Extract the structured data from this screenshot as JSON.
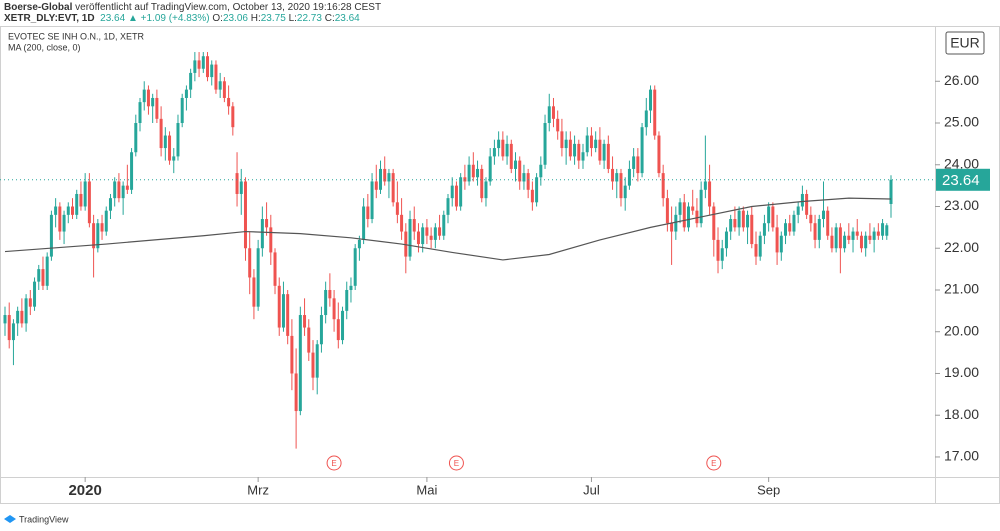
{
  "header": {
    "publisher": "Boerse-Global",
    "published": "veröffentlicht auf TradingView.com, October 13, 2020 19:16:28 CEST",
    "symbol": "XETR_DLY:EVT, 1D",
    "last": "23.64",
    "change": "▲ +1.09 (+4.83%)",
    "quote": [
      "O:",
      "23.06",
      "H:",
      "23.75",
      "L:",
      "22.73",
      "C:",
      "23.64"
    ]
  },
  "footer": "TradingView",
  "chart_data": {
    "type": "candlestick",
    "title": "EVOTEC SE INH O.N., 1D, XETR",
    "currency": "EUR",
    "up_color": "#26a69a",
    "down_color": "#ef5350",
    "grid": false,
    "ylim": [
      16.52,
      27.3
    ],
    "yticks": [
      {
        "value": 17,
        "label": "17.00"
      },
      {
        "value": 18,
        "label": "18.00"
      },
      {
        "value": 19,
        "label": "19.00"
      },
      {
        "value": 20,
        "label": "20.00"
      },
      {
        "value": 21,
        "label": "21.00"
      },
      {
        "value": 22,
        "label": "22.00"
      },
      {
        "value": 23,
        "label": "23.00"
      },
      {
        "value": 24,
        "label": "24.00"
      },
      {
        "value": 25,
        "label": "25.00"
      },
      {
        "value": 26,
        "label": "26.00"
      }
    ],
    "xticks": [
      {
        "value": 19,
        "label": "2020"
      },
      {
        "value": 60,
        "label": "Mrz"
      },
      {
        "value": 100,
        "label": "Mai"
      },
      {
        "value": 139,
        "label": "Jul"
      },
      {
        "value": 181,
        "label": "Sep"
      }
    ],
    "events": [
      {
        "x": 78,
        "label": "E"
      },
      {
        "x": 107,
        "label": "E"
      },
      {
        "x": 168,
        "label": "E"
      }
    ],
    "ma": {
      "name": "MA (200, close, 0)",
      "color": "#555555",
      "x": [
        0,
        24,
        47,
        57,
        70,
        82,
        94,
        106,
        118,
        129,
        141,
        153,
        165,
        177,
        189,
        200,
        210
      ],
      "values": [
        21.92,
        22.1,
        22.3,
        22.4,
        22.35,
        22.25,
        22.1,
        21.9,
        21.72,
        21.85,
        22.2,
        22.5,
        22.75,
        23.0,
        23.12,
        23.2,
        23.18
      ]
    },
    "candles": [
      [
        20.2,
        20.6,
        19.9,
        20.4
      ],
      [
        20.4,
        20.7,
        19.6,
        19.8
      ],
      [
        19.8,
        20.3,
        19.2,
        20.2
      ],
      [
        20.2,
        20.6,
        19.9,
        20.5
      ],
      [
        20.5,
        20.8,
        20.1,
        20.2
      ],
      [
        20.2,
        20.9,
        20.0,
        20.8
      ],
      [
        20.8,
        21.0,
        20.4,
        20.6
      ],
      [
        20.6,
        21.3,
        20.5,
        21.2
      ],
      [
        21.2,
        21.6,
        21.0,
        21.5
      ],
      [
        21.5,
        21.8,
        21.0,
        21.1
      ],
      [
        21.1,
        21.9,
        21.0,
        21.8
      ],
      [
        21.8,
        22.9,
        21.7,
        22.8
      ],
      [
        22.8,
        23.2,
        22.5,
        23.0
      ],
      [
        23.0,
        23.1,
        22.2,
        22.4
      ],
      [
        22.4,
        22.9,
        22.1,
        22.8
      ],
      [
        22.8,
        23.1,
        22.6,
        23.0
      ],
      [
        23.0,
        23.2,
        22.7,
        22.8
      ],
      [
        22.8,
        23.4,
        22.7,
        23.3
      ],
      [
        23.3,
        23.6,
        22.9,
        23.0
      ],
      [
        23.0,
        23.8,
        22.9,
        23.6
      ],
      [
        23.6,
        23.8,
        22.5,
        22.6
      ],
      [
        22.6,
        22.8,
        21.3,
        22.0
      ],
      [
        22.0,
        22.7,
        21.9,
        22.6
      ],
      [
        22.6,
        22.8,
        22.2,
        22.4
      ],
      [
        22.4,
        23.0,
        22.3,
        22.9
      ],
      [
        22.9,
        23.3,
        22.7,
        23.2
      ],
      [
        23.2,
        23.7,
        23.0,
        23.6
      ],
      [
        23.6,
        23.8,
        23.1,
        23.2
      ],
      [
        23.2,
        23.6,
        22.8,
        23.5
      ],
      [
        23.5,
        24.0,
        23.3,
        23.4
      ],
      [
        23.4,
        24.4,
        23.3,
        24.3
      ],
      [
        24.3,
        25.2,
        24.2,
        25.0
      ],
      [
        25.0,
        25.6,
        24.8,
        25.5
      ],
      [
        25.5,
        26.0,
        25.3,
        25.8
      ],
      [
        25.8,
        25.9,
        25.2,
        25.4
      ],
      [
        25.4,
        25.7,
        25.0,
        25.6
      ],
      [
        25.6,
        25.8,
        25.0,
        25.1
      ],
      [
        25.1,
        25.4,
        24.2,
        24.4
      ],
      [
        24.4,
        24.9,
        24.1,
        24.7
      ],
      [
        24.7,
        24.8,
        24.0,
        24.1
      ],
      [
        24.1,
        24.4,
        23.8,
        24.2
      ],
      [
        24.2,
        25.2,
        24.1,
        25.0
      ],
      [
        25.0,
        25.7,
        24.9,
        25.6
      ],
      [
        25.6,
        25.9,
        25.3,
        25.8
      ],
      [
        25.8,
        26.3,
        25.6,
        26.2
      ],
      [
        26.2,
        26.7,
        26.0,
        26.5
      ],
      [
        26.5,
        26.7,
        26.1,
        26.3
      ],
      [
        26.3,
        26.7,
        26.2,
        26.6
      ],
      [
        26.6,
        26.7,
        26.0,
        26.1
      ],
      [
        26.1,
        26.5,
        25.9,
        26.4
      ],
      [
        26.4,
        26.5,
        25.7,
        25.8
      ],
      [
        25.8,
        26.2,
        25.6,
        26.0
      ],
      [
        26.0,
        26.1,
        25.5,
        25.6
      ],
      [
        25.6,
        25.9,
        25.2,
        25.4
      ],
      [
        25.4,
        25.5,
        24.7,
        24.9
      ],
      [
        23.8,
        24.3,
        23.0,
        23.3
      ],
      [
        23.3,
        23.9,
        22.8,
        23.6
      ],
      [
        23.6,
        23.7,
        21.7,
        22.0
      ],
      [
        22.0,
        22.4,
        20.9,
        21.3
      ],
      [
        21.3,
        21.5,
        20.3,
        20.6
      ],
      [
        20.6,
        22.2,
        20.5,
        22.0
      ],
      [
        22.0,
        23.0,
        21.8,
        22.7
      ],
      [
        22.7,
        23.1,
        22.3,
        22.5
      ],
      [
        22.5,
        22.8,
        21.6,
        21.9
      ],
      [
        21.9,
        22.0,
        20.9,
        21.1
      ],
      [
        21.1,
        21.3,
        19.9,
        20.1
      ],
      [
        20.1,
        21.2,
        20.0,
        20.9
      ],
      [
        20.9,
        21.0,
        19.7,
        19.9
      ],
      [
        19.9,
        20.3,
        18.6,
        19.0
      ],
      [
        19.0,
        19.6,
        17.2,
        18.1
      ],
      [
        18.1,
        20.6,
        18.0,
        20.4
      ],
      [
        20.4,
        20.8,
        19.9,
        20.1
      ],
      [
        20.1,
        20.3,
        19.3,
        19.5
      ],
      [
        19.5,
        19.8,
        18.6,
        18.9
      ],
      [
        18.9,
        19.8,
        18.5,
        19.7
      ],
      [
        19.7,
        20.6,
        19.5,
        20.4
      ],
      [
        20.4,
        21.2,
        20.2,
        21.0
      ],
      [
        21.0,
        21.4,
        20.6,
        20.8
      ],
      [
        20.8,
        21.0,
        20.0,
        20.3
      ],
      [
        20.3,
        20.7,
        19.6,
        19.8
      ],
      [
        19.8,
        20.6,
        19.7,
        20.5
      ],
      [
        20.5,
        21.2,
        20.3,
        21.0
      ],
      [
        21.0,
        21.3,
        20.7,
        21.1
      ],
      [
        21.1,
        22.1,
        21.0,
        22.0
      ],
      [
        22.0,
        22.3,
        21.7,
        22.2
      ],
      [
        22.2,
        23.2,
        22.1,
        23.0
      ],
      [
        23.0,
        23.3,
        22.5,
        22.7
      ],
      [
        22.7,
        23.8,
        22.6,
        23.6
      ],
      [
        23.6,
        24.0,
        23.2,
        23.4
      ],
      [
        23.4,
        24.1,
        23.3,
        23.9
      ],
      [
        23.9,
        24.2,
        23.5,
        23.6
      ],
      [
        23.6,
        23.9,
        23.2,
        23.8
      ],
      [
        23.8,
        23.9,
        23.0,
        23.1
      ],
      [
        23.1,
        23.6,
        22.6,
        22.8
      ],
      [
        22.8,
        23.2,
        22.2,
        22.4
      ],
      [
        22.4,
        22.6,
        21.4,
        21.8
      ],
      [
        21.8,
        22.9,
        21.7,
        22.7
      ],
      [
        22.7,
        23.0,
        22.2,
        22.4
      ],
      [
        22.4,
        22.6,
        21.9,
        22.1
      ],
      [
        22.1,
        22.6,
        21.9,
        22.5
      ],
      [
        22.5,
        22.7,
        22.1,
        22.3
      ],
      [
        22.3,
        22.5,
        22.0,
        22.2
      ],
      [
        22.2,
        22.6,
        22.0,
        22.5
      ],
      [
        22.5,
        22.8,
        22.2,
        22.3
      ],
      [
        22.3,
        22.9,
        22.2,
        22.8
      ],
      [
        22.8,
        23.3,
        22.6,
        23.2
      ],
      [
        23.2,
        23.7,
        23.0,
        23.5
      ],
      [
        23.5,
        23.6,
        22.9,
        23.0
      ],
      [
        23.0,
        23.8,
        22.9,
        23.7
      ],
      [
        23.7,
        24.0,
        23.4,
        23.6
      ],
      [
        23.6,
        24.2,
        23.5,
        24.0
      ],
      [
        24.0,
        24.3,
        23.6,
        23.7
      ],
      [
        23.7,
        24.1,
        23.5,
        23.9
      ],
      [
        23.9,
        24.0,
        23.1,
        23.2
      ],
      [
        23.2,
        23.7,
        23.0,
        23.6
      ],
      [
        23.6,
        24.4,
        23.5,
        24.2
      ],
      [
        24.2,
        24.6,
        24.0,
        24.4
      ],
      [
        24.4,
        24.8,
        24.2,
        24.6
      ],
      [
        24.6,
        24.8,
        24.1,
        24.2
      ],
      [
        24.2,
        24.7,
        24.0,
        24.5
      ],
      [
        24.5,
        24.6,
        23.8,
        23.9
      ],
      [
        23.9,
        24.3,
        23.6,
        24.1
      ],
      [
        24.1,
        24.2,
        23.4,
        23.6
      ],
      [
        23.6,
        24.0,
        23.4,
        23.8
      ],
      [
        23.8,
        23.9,
        23.2,
        23.4
      ],
      [
        23.4,
        23.6,
        22.9,
        23.1
      ],
      [
        23.1,
        23.8,
        23.0,
        23.7
      ],
      [
        23.7,
        24.2,
        23.5,
        24.0
      ],
      [
        24.0,
        25.2,
        23.9,
        25.0
      ],
      [
        25.0,
        25.7,
        24.8,
        25.4
      ],
      [
        25.4,
        25.6,
        24.9,
        25.1
      ],
      [
        25.1,
        25.3,
        24.6,
        24.8
      ],
      [
        24.8,
        25.1,
        24.2,
        24.4
      ],
      [
        24.4,
        24.8,
        24.0,
        24.6
      ],
      [
        24.6,
        24.8,
        24.1,
        24.2
      ],
      [
        24.2,
        24.7,
        24.0,
        24.5
      ],
      [
        24.5,
        24.6,
        23.9,
        24.1
      ],
      [
        24.1,
        24.5,
        23.9,
        24.3
      ],
      [
        24.3,
        24.9,
        24.2,
        24.7
      ],
      [
        24.7,
        24.9,
        24.2,
        24.4
      ],
      [
        24.4,
        24.8,
        24.3,
        24.6
      ],
      [
        24.6,
        24.9,
        24.0,
        24.1
      ],
      [
        24.1,
        24.6,
        23.9,
        24.5
      ],
      [
        24.5,
        24.7,
        23.8,
        23.9
      ],
      [
        23.9,
        24.2,
        23.4,
        23.6
      ],
      [
        23.6,
        23.9,
        23.2,
        23.8
      ],
      [
        23.8,
        23.9,
        23.0,
        23.2
      ],
      [
        23.2,
        23.7,
        22.9,
        23.5
      ],
      [
        23.5,
        24.1,
        23.4,
        23.9
      ],
      [
        23.9,
        24.4,
        23.7,
        24.2
      ],
      [
        24.2,
        24.4,
        23.6,
        23.8
      ],
      [
        23.8,
        25.0,
        23.7,
        24.9
      ],
      [
        24.9,
        25.6,
        24.7,
        25.3
      ],
      [
        25.3,
        25.9,
        25.0,
        25.8
      ],
      [
        25.8,
        25.9,
        24.6,
        24.7
      ],
      [
        24.7,
        24.8,
        23.7,
        23.8
      ],
      [
        23.8,
        24.0,
        23.0,
        23.2
      ],
      [
        23.2,
        23.4,
        22.4,
        22.6
      ],
      [
        22.6,
        23.0,
        21.6,
        22.4
      ],
      [
        22.4,
        23.0,
        22.2,
        22.8
      ],
      [
        22.8,
        23.2,
        22.6,
        23.1
      ],
      [
        23.1,
        23.3,
        22.4,
        22.5
      ],
      [
        22.5,
        23.1,
        22.4,
        23.0
      ],
      [
        23.0,
        23.4,
        22.8,
        22.9
      ],
      [
        22.9,
        23.2,
        22.5,
        22.6
      ],
      [
        22.6,
        23.6,
        22.5,
        23.4
      ],
      [
        23.4,
        24.7,
        23.2,
        23.6
      ],
      [
        23.6,
        24.0,
        22.8,
        23.0
      ],
      [
        23.0,
        23.1,
        21.8,
        22.2
      ],
      [
        22.2,
        22.5,
        21.4,
        21.7
      ],
      [
        21.7,
        22.2,
        21.5,
        22.0
      ],
      [
        22.0,
        22.5,
        21.8,
        22.4
      ],
      [
        22.4,
        22.8,
        22.2,
        22.7
      ],
      [
        22.7,
        23.0,
        22.4,
        22.5
      ],
      [
        22.5,
        23.0,
        22.3,
        22.9
      ],
      [
        22.9,
        23.0,
        22.4,
        22.5
      ],
      [
        22.5,
        22.9,
        22.1,
        22.8
      ],
      [
        22.8,
        23.0,
        22.0,
        22.1
      ],
      [
        22.1,
        22.4,
        21.6,
        21.8
      ],
      [
        21.8,
        22.4,
        21.7,
        22.3
      ],
      [
        22.3,
        22.8,
        22.1,
        22.6
      ],
      [
        22.6,
        23.1,
        22.4,
        23.0
      ],
      [
        23.0,
        23.1,
        22.4,
        22.5
      ],
      [
        22.5,
        22.8,
        21.6,
        21.9
      ],
      [
        21.9,
        22.4,
        21.7,
        22.3
      ],
      [
        22.3,
        22.7,
        22.1,
        22.6
      ],
      [
        22.6,
        22.8,
        22.3,
        22.4
      ],
      [
        22.4,
        22.9,
        22.3,
        22.8
      ],
      [
        22.8,
        23.1,
        22.6,
        23.0
      ],
      [
        23.0,
        23.5,
        22.9,
        23.3
      ],
      [
        23.3,
        23.4,
        22.7,
        22.8
      ],
      [
        22.8,
        23.0,
        22.4,
        22.6
      ],
      [
        22.6,
        22.8,
        22.0,
        22.2
      ],
      [
        22.2,
        22.8,
        22.0,
        22.7
      ],
      [
        22.7,
        23.6,
        22.5,
        22.9
      ],
      [
        22.9,
        23.0,
        22.2,
        22.3
      ],
      [
        22.3,
        22.5,
        21.9,
        22.0
      ],
      [
        22.0,
        22.6,
        21.9,
        22.5
      ],
      [
        22.5,
        22.6,
        21.4,
        22.0
      ],
      [
        22.0,
        22.4,
        21.9,
        22.3
      ],
      [
        22.3,
        22.6,
        22.1,
        22.2
      ],
      [
        22.2,
        22.5,
        21.9,
        22.4
      ],
      [
        22.4,
        22.7,
        22.2,
        22.3
      ],
      [
        22.3,
        22.4,
        21.9,
        22.0
      ],
      [
        22.0,
        22.4,
        21.8,
        22.3
      ],
      [
        22.3,
        22.6,
        22.1,
        22.2
      ],
      [
        22.2,
        22.5,
        21.9,
        22.4
      ],
      [
        22.4,
        22.6,
        22.2,
        22.3
      ],
      [
        22.3,
        22.7,
        22.2,
        22.6
      ],
      [
        22.3,
        22.6,
        22.2,
        22.55
      ],
      [
        23.06,
        23.75,
        22.73,
        23.64
      ]
    ]
  }
}
